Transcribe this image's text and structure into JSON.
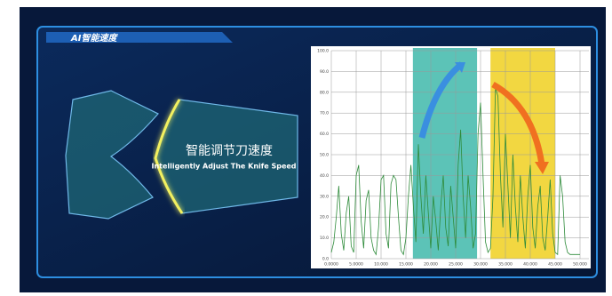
{
  "header": {
    "title": "AI智能速度"
  },
  "overlay": {
    "title": "智能调节刀速度",
    "subtitle": "Intelligently Adjust The Knife Speed"
  },
  "chart_data": {
    "type": "line",
    "xlim": [
      0,
      50
    ],
    "ylim": [
      0,
      100
    ],
    "yticks": [
      {
        "value": 0,
        "label": "0.0"
      },
      {
        "value": 10,
        "label": "10.0"
      },
      {
        "value": 20,
        "label": "20.0"
      },
      {
        "value": 30,
        "label": "30.0"
      },
      {
        "value": 40,
        "label": "40.0"
      },
      {
        "value": 50,
        "label": "50.0"
      },
      {
        "value": 60,
        "label": "60.0"
      },
      {
        "value": 70,
        "label": "70.0"
      },
      {
        "value": 80,
        "label": "80.0"
      },
      {
        "value": 90,
        "label": "90.0"
      },
      {
        "value": 100,
        "label": "100.0"
      }
    ],
    "xticks": [
      {
        "value": 0,
        "label": "0.0000"
      },
      {
        "value": 5,
        "label": "5.0000"
      },
      {
        "value": 10,
        "label": "10.000"
      },
      {
        "value": 15,
        "label": "15.000"
      },
      {
        "value": 20,
        "label": "20.000"
      },
      {
        "value": 25,
        "label": "25.000"
      },
      {
        "value": 30,
        "label": "30.000"
      },
      {
        "value": 35,
        "label": "35.000"
      },
      {
        "value": 40,
        "label": "40.000"
      },
      {
        "value": 45,
        "label": "45.000"
      },
      {
        "value": 50,
        "label": "50.000"
      }
    ],
    "grid": true,
    "highlight_ranges": [
      {
        "from": 16.4,
        "to": 29.3,
        "color": "#3fb8aa"
      },
      {
        "from": 32,
        "to": 45,
        "color": "#f0d020"
      }
    ],
    "x": [
      0,
      0.5,
      1,
      1.5,
      2,
      2.5,
      3,
      3.5,
      4,
      4.5,
      5,
      5.5,
      6,
      6.5,
      7,
      7.5,
      8,
      8.5,
      9,
      9.5,
      10,
      10.5,
      11,
      11.5,
      12,
      12.5,
      13,
      13.5,
      14,
      14.5,
      15,
      15.5,
      16,
      16.5,
      17,
      17.5,
      18,
      18.5,
      19,
      19.5,
      20,
      20.5,
      21,
      21.5,
      22,
      22.5,
      23,
      23.5,
      24,
      24.5,
      25,
      25.5,
      26,
      26.5,
      27,
      27.5,
      28,
      28.5,
      29,
      29.5,
      30,
      30.5,
      31,
      31.5,
      32,
      32.5,
      33,
      33.5,
      34,
      34.5,
      35,
      35.5,
      36,
      36.5,
      37,
      37.5,
      38,
      38.5,
      39,
      39.5,
      40,
      40.5,
      41,
      41.5,
      42,
      42.5,
      43,
      43.5,
      44,
      44.5,
      45,
      45.5,
      46,
      46.5,
      47,
      47.5,
      48,
      48.5,
      49,
      49.5,
      50
    ],
    "series": [
      {
        "name": "speed",
        "color": "#2e8b3a",
        "values": [
          3,
          8,
          20,
          35,
          12,
          4,
          22,
          30,
          6,
          3,
          40,
          45,
          18,
          5,
          28,
          33,
          10,
          4,
          2,
          15,
          38,
          40,
          12,
          5,
          36,
          40,
          38,
          20,
          4,
          2,
          10,
          30,
          45,
          25,
          8,
          55,
          30,
          12,
          40,
          22,
          5,
          30,
          18,
          4,
          25,
          40,
          15,
          6,
          35,
          20,
          5,
          45,
          62,
          30,
          10,
          40,
          25,
          5,
          12,
          60,
          75,
          40,
          8,
          3,
          5,
          30,
          82,
          78,
          40,
          15,
          60,
          35,
          10,
          50,
          25,
          8,
          40,
          20,
          5,
          30,
          45,
          15,
          5,
          25,
          35,
          10,
          4,
          20,
          38,
          12,
          3,
          2,
          40,
          30,
          8,
          3,
          2,
          2,
          2,
          2,
          2
        ]
      }
    ]
  }
}
